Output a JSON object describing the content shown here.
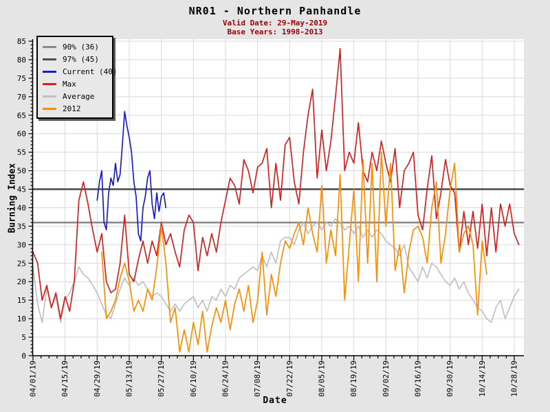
{
  "title": "NR01 - Northern Panhandle",
  "subtitle": {
    "valid_date": "Valid Date: 29-May-2019",
    "base_years": "Base Years: 1998-2013"
  },
  "colors": {
    "page_bg": "#e5e5e5",
    "plot_bg": "#ffffff",
    "grid": "#d9d9d9",
    "axis": "#000000",
    "subtitle_red": "#a40000",
    "pct90": "#8a8a8a",
    "pct97": "#4f4f4f",
    "current": "#1a1acd",
    "max": "#d62020",
    "average": "#c0c0c0",
    "y2012": "#ff8c00"
  },
  "legend": {
    "items": [
      {
        "label": "90% (36)",
        "color": "#8a8a8a"
      },
      {
        "label": "97% (45)",
        "color": "#4f4f4f"
      },
      {
        "label": "Current (40)",
        "color": "#1a1acd"
      },
      {
        "label": "Max",
        "color": "#d62020"
      },
      {
        "label": "Average",
        "color": "#c0c0c0"
      },
      {
        "label": "2012",
        "color": "#ff8c00"
      }
    ]
  },
  "chart_data": {
    "type": "line",
    "title": "NR01 - Northern Panhandle",
    "xlabel": "Date",
    "ylabel": "Burning Index",
    "ylim": [
      0,
      85
    ],
    "y_tick_step": 5,
    "grid": true,
    "legend_position": "top-left",
    "x_tick_labels": [
      "04/01/19",
      "04/15/19",
      "04/29/19",
      "05/13/19",
      "05/27/19",
      "06/10/19",
      "06/24/19",
      "07/08/19",
      "07/22/19",
      "08/05/19",
      "08/19/19",
      "09/02/19",
      "09/16/19",
      "09/30/19",
      "10/14/19",
      "10/28/19"
    ],
    "x_tick_interval_days": 14,
    "x_minor_tick_days": 3.5,
    "x_domain_days": [
      0,
      214
    ],
    "thresholds": [
      {
        "name": "90% (36)",
        "value": 36,
        "color": "#8a8a8a"
      },
      {
        "name": "97% (45)",
        "value": 45,
        "color": "#4f4f4f"
      }
    ],
    "series": [
      {
        "name": "Average",
        "color": "#c0c0c0",
        "start_day": 0,
        "step_days": 2,
        "values": [
          24,
          14,
          9,
          18,
          13,
          16,
          9,
          15,
          17,
          20,
          24,
          22,
          21,
          19,
          17,
          14,
          11,
          10,
          14,
          18,
          21,
          19,
          21,
          19,
          20,
          18,
          16,
          17,
          16,
          14,
          12,
          14,
          12,
          14,
          15,
          16,
          13,
          15,
          12,
          16,
          15,
          18,
          16,
          19,
          18,
          21,
          22,
          23,
          24,
          23,
          27,
          24,
          28,
          25,
          31,
          32,
          32,
          30,
          34,
          36,
          33,
          35,
          36,
          34,
          36,
          35,
          37,
          36,
          34,
          35,
          33,
          35,
          32,
          34,
          32,
          34,
          33,
          31,
          30,
          29,
          27,
          30,
          24,
          22,
          20,
          24,
          21,
          25,
          24,
          22,
          20,
          19,
          21,
          18,
          20,
          17,
          15,
          13,
          12,
          10,
          9,
          13,
          15,
          10,
          13,
          16,
          18
        ]
      },
      {
        "name": "Max",
        "color": "#d62020",
        "start_day": 0,
        "step_days": 2,
        "values": [
          28,
          25,
          15,
          19,
          13,
          17,
          10,
          16,
          12,
          20,
          42,
          47,
          41,
          34,
          28,
          33,
          20,
          17,
          18,
          25,
          38,
          22,
          20,
          26,
          31,
          25,
          31,
          27,
          36,
          30,
          33,
          28,
          24,
          34,
          38,
          36,
          23,
          32,
          27,
          33,
          28,
          36,
          42,
          48,
          46,
          41,
          53,
          50,
          44,
          51,
          52,
          56,
          40,
          52,
          42,
          57,
          59,
          47,
          41,
          55,
          65,
          72,
          48,
          61,
          50,
          58,
          70,
          83,
          50,
          55,
          52,
          63,
          50,
          47,
          55,
          50,
          58,
          52,
          47,
          56,
          40,
          50,
          52,
          55,
          38,
          34,
          45,
          54,
          37,
          44,
          53,
          46,
          44,
          28,
          39,
          30,
          39,
          29,
          41,
          27,
          40,
          28,
          41,
          35,
          41,
          33,
          30
        ]
      },
      {
        "name": "2012",
        "color": "#ff8c00",
        "start_day": 30,
        "step_days": 2,
        "values": [
          28,
          10,
          12,
          15,
          21,
          25,
          20,
          12,
          15,
          12,
          18,
          15,
          24,
          35,
          25,
          9,
          13,
          1,
          7,
          1,
          9,
          3,
          12,
          1,
          8,
          13,
          9,
          15,
          7,
          14,
          18,
          12,
          19,
          9,
          15,
          28,
          11,
          22,
          16,
          25,
          31,
          29,
          33,
          36,
          30,
          40,
          33,
          28,
          46,
          25,
          34,
          27,
          49,
          15,
          30,
          45,
          20,
          53,
          25,
          52,
          20,
          55,
          35,
          52,
          23,
          30,
          17,
          28,
          34,
          35,
          32,
          25,
          40,
          47,
          25,
          33,
          45,
          52,
          28,
          33,
          35,
          30,
          11,
          31,
          22
        ]
      },
      {
        "name": "Current (40)",
        "color": "#1a1acd",
        "start_day": 28,
        "step_days": 1,
        "values": [
          42,
          47,
          50,
          36,
          34,
          44,
          48,
          46,
          52,
          47,
          49,
          57,
          66,
          62,
          59,
          55,
          47,
          43,
          33,
          31,
          40,
          43,
          48,
          50,
          41,
          37,
          44,
          39,
          43,
          44,
          40
        ]
      }
    ]
  }
}
